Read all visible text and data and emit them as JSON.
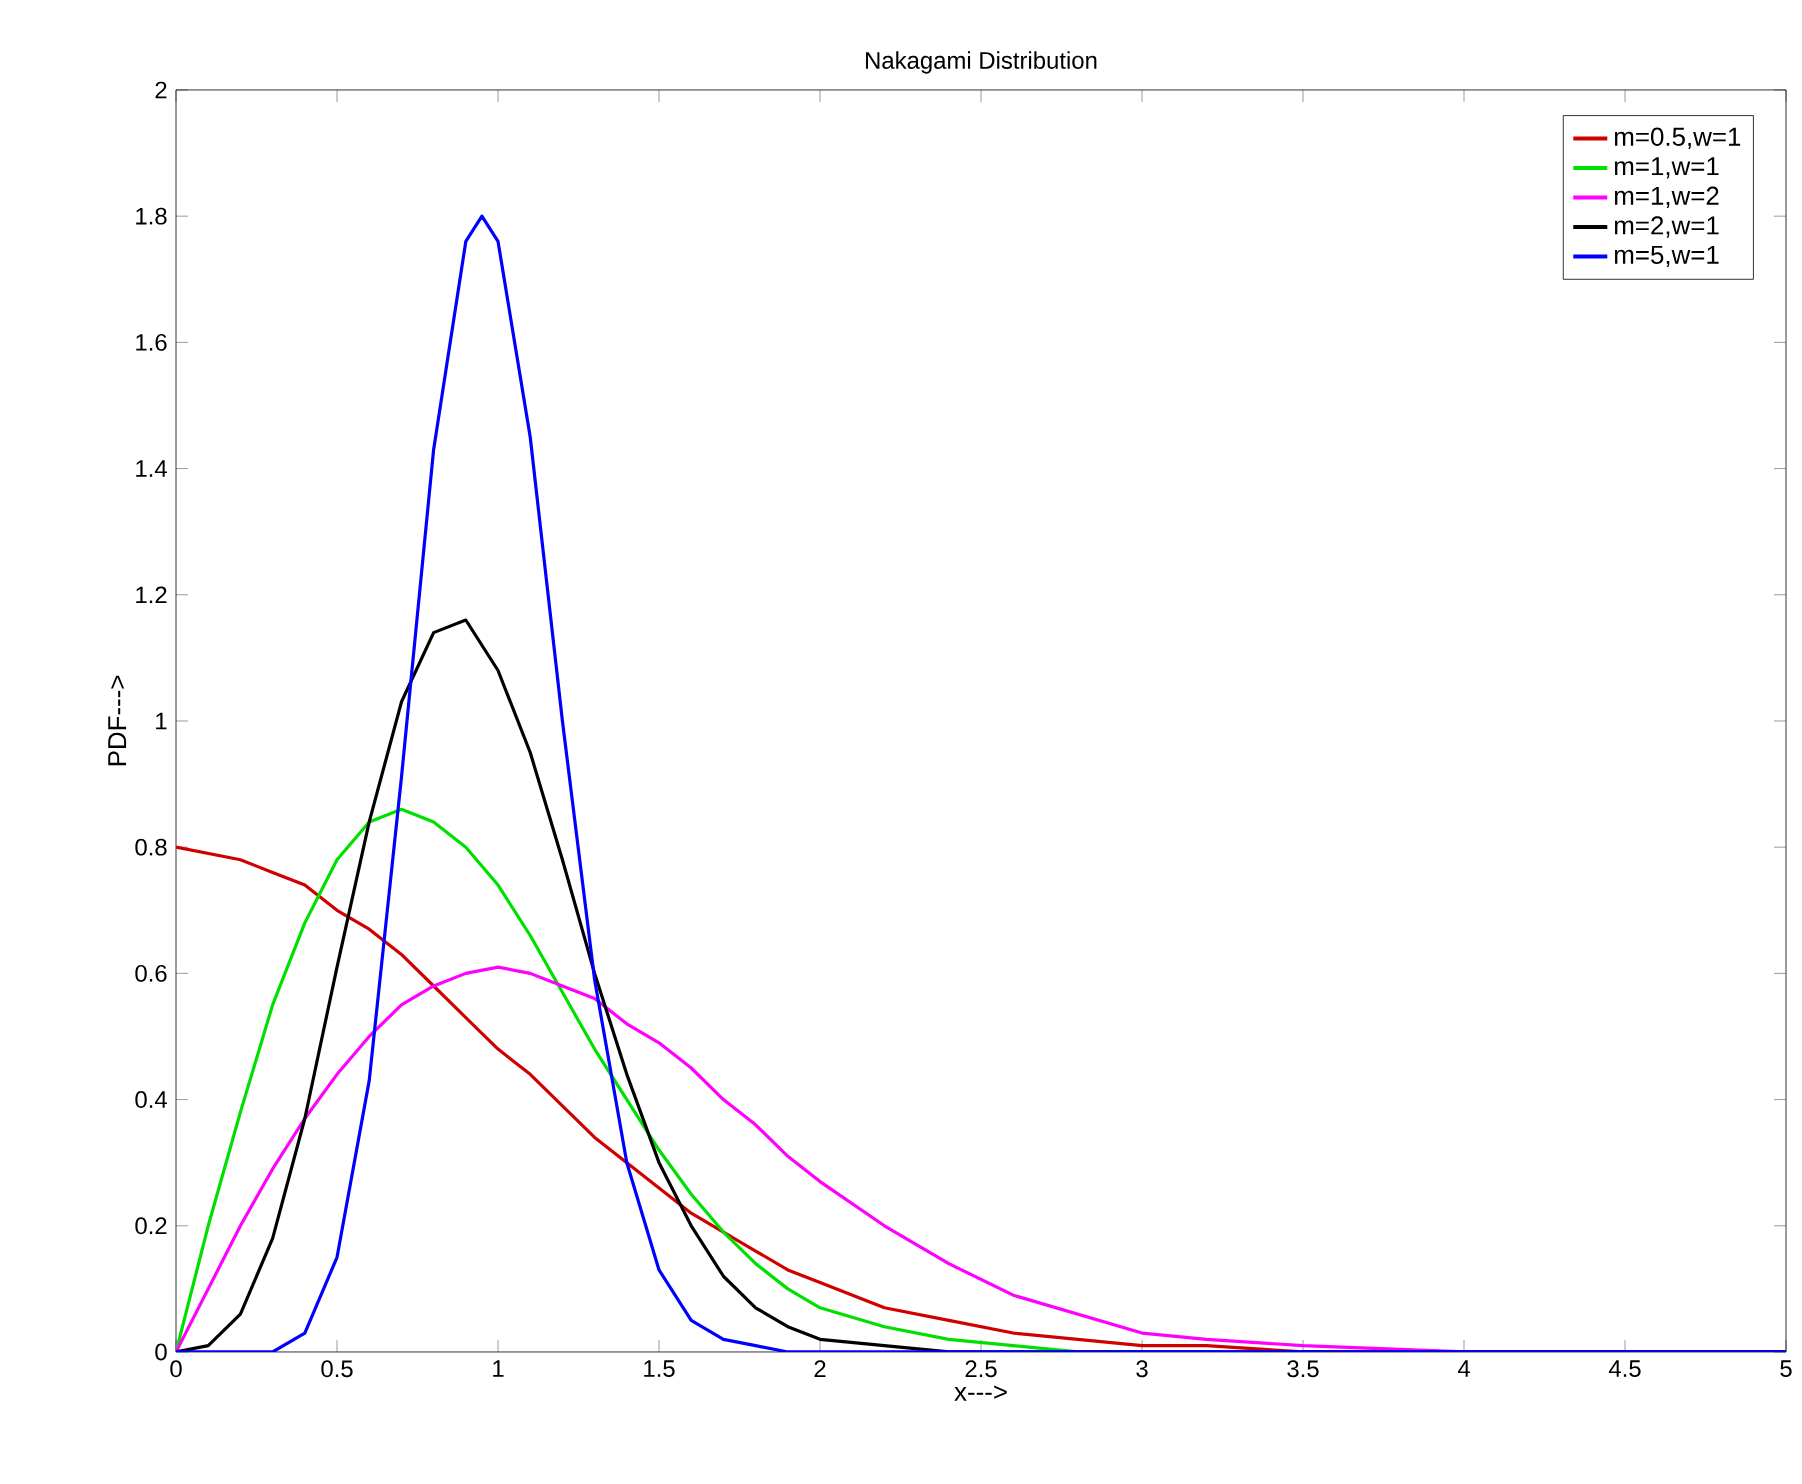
{
  "chart_data": {
    "type": "line",
    "title": "Nakagami Distribution",
    "xlabel": "x--->",
    "ylabel": "PDF--->",
    "x": [
      0,
      0.1,
      0.2,
      0.3,
      0.4,
      0.5,
      0.6,
      0.7,
      0.8,
      0.9,
      1.0,
      1.1,
      1.2,
      1.3,
      1.4,
      1.5,
      1.6,
      1.7,
      1.8,
      1.9,
      2.0,
      2.2,
      2.4,
      2.6,
      2.8,
      3.0,
      3.2,
      3.5,
      4.0,
      5.0
    ],
    "series": [
      {
        "name": "m=0.5,w=1",
        "color": "#d00000",
        "values": [
          0.8,
          0.79,
          0.78,
          0.76,
          0.74,
          0.7,
          0.67,
          0.63,
          0.58,
          0.53,
          0.48,
          0.44,
          0.39,
          0.34,
          0.3,
          0.26,
          0.22,
          0.19,
          0.16,
          0.13,
          0.11,
          0.07,
          0.05,
          0.03,
          0.02,
          0.01,
          0.01,
          0.0,
          0.0,
          0.0
        ]
      },
      {
        "name": "m=1,w=1",
        "color": "#00e000",
        "values": [
          0,
          0.2,
          0.38,
          0.55,
          0.68,
          0.78,
          0.84,
          0.86,
          0.84,
          0.8,
          0.74,
          0.66,
          0.57,
          0.48,
          0.4,
          0.32,
          0.25,
          0.19,
          0.14,
          0.1,
          0.07,
          0.04,
          0.02,
          0.01,
          0.0,
          0.0,
          null,
          null,
          null,
          null
        ]
      },
      {
        "name": "m=1,w=2",
        "color": "#ff00ff",
        "values": [
          0,
          0.1,
          0.2,
          0.29,
          0.37,
          0.44,
          0.5,
          0.55,
          0.58,
          0.6,
          0.61,
          0.6,
          0.58,
          0.56,
          0.52,
          0.49,
          0.45,
          0.4,
          0.36,
          0.31,
          0.27,
          0.2,
          0.14,
          0.09,
          0.06,
          0.03,
          0.02,
          0.01,
          0.0,
          0.0
        ]
      },
      {
        "name": "m=2,w=1",
        "color": "#000000",
        "values": [
          0,
          0.01,
          0.06,
          0.18,
          0.37,
          0.61,
          0.84,
          1.03,
          1.14,
          1.16,
          1.08,
          0.95,
          0.78,
          0.6,
          0.44,
          0.3,
          0.2,
          0.12,
          0.07,
          0.04,
          0.02,
          0.01,
          0.0,
          0.0,
          0.0,
          0.0,
          0.0,
          0.0,
          0.0,
          0.0
        ]
      },
      {
        "name": "m=5,w=1",
        "color": "#0000ff",
        "x": [
          0,
          0.2,
          0.3,
          0.4,
          0.5,
          0.6,
          0.7,
          0.8,
          0.9,
          0.95,
          1.0,
          1.1,
          1.2,
          1.3,
          1.4,
          1.5,
          1.6,
          1.7,
          1.8,
          1.9,
          2.0,
          3.0,
          5.0
        ],
        "values": [
          0,
          0,
          0.0,
          0.03,
          0.15,
          0.43,
          0.91,
          1.43,
          1.76,
          1.8,
          1.76,
          1.45,
          1.0,
          0.59,
          0.3,
          0.13,
          0.05,
          0.02,
          0.01,
          0.0,
          0.0,
          0.0,
          0.0
        ]
      }
    ],
    "xlim": [
      0,
      5
    ],
    "ylim": [
      0,
      2
    ],
    "xticks": [
      0,
      0.5,
      1,
      1.5,
      2,
      2.5,
      3,
      3.5,
      4,
      4.5,
      5
    ],
    "yticks": [
      0,
      0.2,
      0.4,
      0.6,
      0.8,
      1,
      1.2,
      1.4,
      1.6,
      1.8,
      2
    ],
    "legend": "top right",
    "grid": false,
    "marker": "none",
    "line_style": "solid"
  }
}
